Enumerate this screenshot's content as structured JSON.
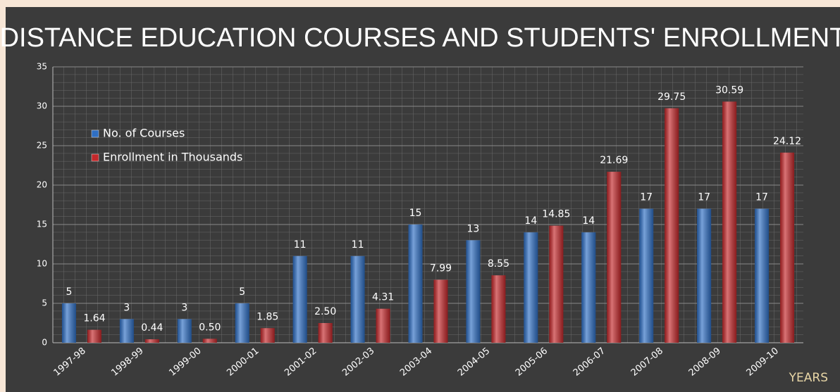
{
  "chart_data": {
    "type": "bar",
    "title": "DISTANCE EDUCATION COURSES AND STUDENTS' ENROLLMENT",
    "x_label": "YEARS",
    "categories": [
      "1997-98",
      "1998-99",
      "1999-00",
      "2000-01",
      "2001-02",
      "2002-03",
      "2003-04",
      "2004-05",
      "2005-06",
      "2006-07",
      "2007-08",
      "2008-09",
      "2009-10"
    ],
    "series": [
      {
        "name": "No. of Courses",
        "color": "#2f6fc4",
        "values": [
          5,
          3,
          3,
          5,
          11,
          11,
          15,
          13,
          14,
          14,
          17,
          17,
          17
        ]
      },
      {
        "name": "Enrollment in Thousands",
        "color": "#c4282b",
        "values": [
          1.64,
          0.44,
          0.5,
          1.85,
          2.5,
          4.31,
          7.99,
          8.55,
          14.85,
          21.69,
          29.75,
          30.59,
          24.12
        ],
        "value_labels": [
          "1.64",
          "0.44",
          "0.50",
          "1.85",
          "2.50",
          "4.31",
          "7.99",
          "8.55",
          "14.85",
          "21.69",
          "29.75",
          "30.59",
          "24.12"
        ]
      }
    ],
    "ylim": [
      0,
      35
    ],
    "yticks": [
      0,
      5,
      10,
      15,
      20,
      25,
      30,
      35
    ],
    "grid": true,
    "legend": "upper left"
  }
}
